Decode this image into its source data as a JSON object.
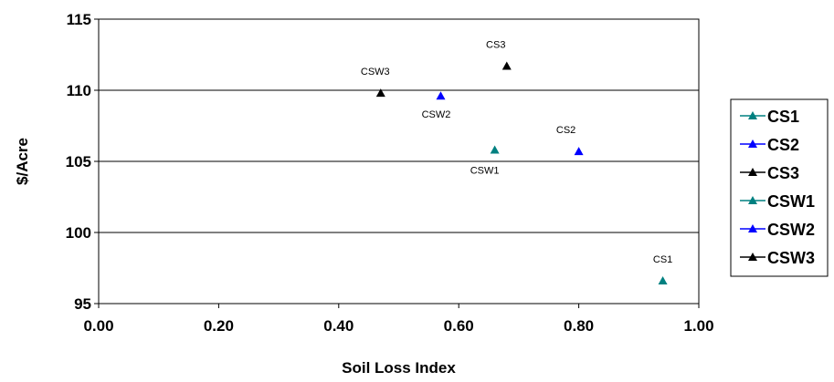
{
  "chart_data": {
    "type": "scatter",
    "title": "",
    "xlabel": "Soil Loss Index",
    "ylabel": "$/Acre",
    "xlim": [
      0,
      1
    ],
    "ylim": [
      95,
      115
    ],
    "xticks": [
      "0.00",
      "0.20",
      "0.40",
      "0.60",
      "0.80",
      "1.00"
    ],
    "xtick_values": [
      0,
      0.2,
      0.4,
      0.6,
      0.8,
      1.0
    ],
    "yticks": [
      "95",
      "100",
      "105",
      "110",
      "115"
    ],
    "ytick_values": [
      95,
      100,
      105,
      110,
      115
    ],
    "grid": "horizontal",
    "legend_position": "right",
    "series": [
      {
        "name": "CS1",
        "color": "#008080",
        "marker": "triangle",
        "points": [
          {
            "x": 0.94,
            "y": 96.6,
            "label": "CS1"
          }
        ]
      },
      {
        "name": "CS2",
        "color": "#0000FF",
        "marker": "triangle",
        "points": [
          {
            "x": 0.8,
            "y": 105.7,
            "label": "CS2"
          }
        ]
      },
      {
        "name": "CS3",
        "color": "#000000",
        "marker": "triangle",
        "points": [
          {
            "x": 0.68,
            "y": 111.7,
            "label": "CS3"
          }
        ]
      },
      {
        "name": "CSW1",
        "color": "#008080",
        "marker": "triangle",
        "points": [
          {
            "x": 0.66,
            "y": 105.8,
            "label": "CSW1"
          }
        ]
      },
      {
        "name": "CSW2",
        "color": "#0000FF",
        "marker": "triangle",
        "points": [
          {
            "x": 0.57,
            "y": 109.6,
            "label": "CSW2"
          }
        ]
      },
      {
        "name": "CSW3",
        "color": "#000000",
        "marker": "triangle",
        "points": [
          {
            "x": 0.47,
            "y": 109.8,
            "label": "CSW3"
          }
        ]
      }
    ]
  }
}
